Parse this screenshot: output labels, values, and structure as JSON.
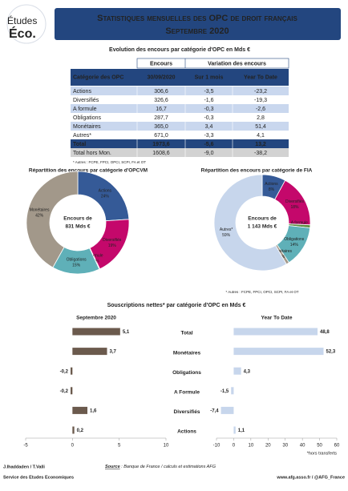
{
  "header": {
    "logo_top": "Études",
    "logo_bottom": "Éco.",
    "title": "Statistiques mensuelles des OPC de droit français",
    "subtitle": "Septembre 2020"
  },
  "table": {
    "title": "Evolution des encours par catégorie d'OPC en Mds €",
    "header_top": [
      "Encours",
      "Variation des encours"
    ],
    "header": [
      "Catégorie des OPC",
      "30/09/2020",
      "Sur 1 mois",
      "Year To Date"
    ],
    "rows": [
      [
        "Actions",
        "306,6",
        "-3,5",
        "-23,2"
      ],
      [
        "Diversifiés",
        "326,6",
        "-1,6",
        "-19,3"
      ],
      [
        "A formule",
        "16,7",
        "-0,3",
        "-2,6"
      ],
      [
        "Obligations",
        "287,7",
        "-0,3",
        "2,8"
      ],
      [
        "Monétaires",
        "365,0",
        "3,4",
        "51,4"
      ],
      [
        "Autres*",
        "671,0",
        "-3,3",
        "4,1"
      ],
      [
        "Total",
        "1973,6",
        "-5,6",
        "13,2"
      ],
      [
        "Total hors Mon.",
        "1608,6",
        "-9,0",
        "-38,2"
      ]
    ],
    "footnote": "* Autres : FCPE, FPCI, OPCI, SCPI, FA et OT"
  },
  "section_title": "Souscriptions nettes* par catégorie d'OPC en Mds €",
  "chart_data": [
    {
      "type": "donut",
      "title": "Répartition des encours par catégorie d'OPCVM",
      "center_text": [
        "Encours de",
        "831 Mds €"
      ],
      "categories": [
        "Actions",
        "Diversifiés",
        "A formule",
        "Obligations",
        "Monétaires"
      ],
      "values": [
        24,
        19,
        0.2,
        15,
        42
      ],
      "value_labels": [
        "24%",
        "19%",
        "0,2%",
        "15%",
        "42%"
      ],
      "colors": [
        "#355a97",
        "#c4086b",
        "#5a8a3c",
        "#5fb0b8",
        "#a2988a"
      ]
    },
    {
      "type": "donut",
      "title": "Répartition des encours par catégorie de FIA",
      "center_text": [
        "Encours de",
        "1 143 Mds €"
      ],
      "categories": [
        "Actions",
        "Diversifiés",
        "A formule",
        "Obligations",
        "Monétaires",
        "Autres*"
      ],
      "values": [
        8,
        18,
        1,
        14,
        1,
        59
      ],
      "value_labels": [
        "8%",
        "18%",
        "1%",
        "14%",
        "1%",
        "59%"
      ],
      "colors": [
        "#355a97",
        "#c4086b",
        "#5a8a3c",
        "#5fb0b8",
        "#a2988a",
        "#c7d6ec"
      ],
      "footnote": "* Autres : FCPE, FPCI, OPCI, SCPI, FA et OT"
    },
    {
      "type": "hbar",
      "title": "Septembre 2020",
      "categories": [
        "Total",
        "Monétaires",
        "Obligations",
        "A Formule",
        "Diversifiés",
        "Actions"
      ],
      "values": [
        5.1,
        3.7,
        -0.2,
        -0.2,
        1.6,
        0.2
      ],
      "value_labels": [
        "5,1",
        "3,7",
        "-0,2",
        "-0,2",
        "1,6",
        "0,2"
      ],
      "color": "#6b5a4d",
      "xlim": [
        -5,
        10
      ],
      "xticks": [
        -5,
        0,
        5,
        10
      ]
    },
    {
      "type": "hbar",
      "title": "Year To Date",
      "values": [
        48.8,
        52.3,
        4.3,
        -1.5,
        -7.4,
        1.1
      ],
      "value_labels": [
        "48,8",
        "52,3",
        "4,3",
        "-1,5",
        "-7,4",
        "1,1"
      ],
      "color": "#c7d6ec",
      "xlim": [
        -10,
        60
      ],
      "xticks": [
        -10,
        0,
        10,
        20,
        30,
        40,
        50,
        60
      ],
      "footnote": "*hors transferts"
    }
  ],
  "footer": {
    "authors": "J.Ihaddaden / T.Valli",
    "service": "Service des Etudes Economiques",
    "source_label": "Source",
    "source": " : Banque de France / calculs et estimations AFG",
    "web": "www.afg.asso.fr / @AFG_France"
  }
}
